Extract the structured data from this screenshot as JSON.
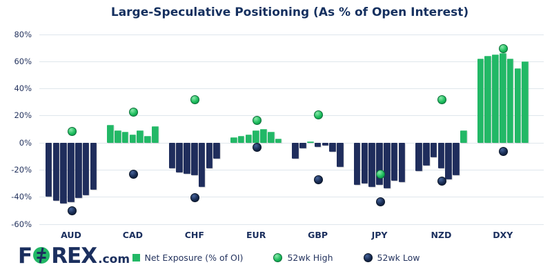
{
  "colors": {
    "green": "#22b866",
    "navy": "#1f2d5c",
    "grid": "#dfe6ec",
    "text": "#1b2f5e"
  },
  "logo": {
    "f": "F",
    "rex": "REX",
    "tld": ".com"
  },
  "chart_data": {
    "type": "bar",
    "title": "Large-Speculative Positioning (As % of Open Interest)",
    "xlabel": "",
    "ylabel": "",
    "ylim": [
      -60,
      80
    ],
    "grid": true,
    "legend_position": "bottom",
    "yticks": [
      80,
      60,
      40,
      20,
      0,
      -20,
      -40,
      -60
    ],
    "ytick_labels": [
      "80%",
      "60%",
      "40%",
      "20%",
      "0%",
      "-20%",
      "-40%",
      "-60%"
    ],
    "categories": [
      "AUD",
      "CAD",
      "CHF",
      "EUR",
      "GBP",
      "JPY",
      "NZD",
      "DXY"
    ],
    "bars_per_group": 7,
    "groups": [
      {
        "label": "AUD",
        "bars": [
          -40,
          -43,
          -45,
          -44,
          -41,
          -39,
          -35
        ],
        "high": 9,
        "low": -50
      },
      {
        "label": "CAD",
        "bars": [
          13,
          9,
          8,
          6,
          9,
          5,
          12
        ],
        "high": 23,
        "low": -23
      },
      {
        "label": "CHF",
        "bars": [
          -19,
          -22,
          -23,
          -24,
          -33,
          -19,
          -12
        ],
        "high": 32,
        "low": -40
      },
      {
        "label": "EUR",
        "bars": [
          4,
          5,
          6,
          9,
          10,
          8,
          3
        ],
        "high": 17,
        "low": -3
      },
      {
        "label": "GBP",
        "bars": [
          -12,
          -4,
          1,
          -3,
          -2,
          -7,
          -18
        ],
        "high": 21,
        "low": -27
      },
      {
        "label": "JPY",
        "bars": [
          -31,
          -30,
          -33,
          -31,
          -34,
          -28,
          -29
        ],
        "high": -23,
        "low": -43
      },
      {
        "label": "NZD",
        "bars": [
          -21,
          -17,
          -11,
          -19,
          -27,
          -24,
          9
        ],
        "high": 32,
        "low": -28
      },
      {
        "label": "DXY",
        "bars": [
          62,
          64,
          65,
          66,
          62,
          55,
          60
        ],
        "high": 70,
        "low": -6
      }
    ],
    "legend": [
      {
        "label": "Net Exposure (% of OI)",
        "marker": "green-square"
      },
      {
        "label": "52wk High",
        "marker": "green-dot"
      },
      {
        "label": "52wk Low",
        "marker": "navy-dot"
      }
    ]
  }
}
